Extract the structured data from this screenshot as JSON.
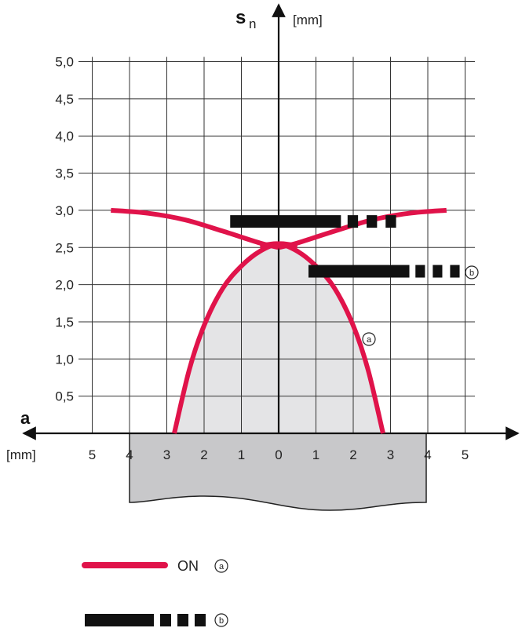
{
  "chart_data": {
    "type": "line",
    "y_axis": {
      "symbol": "s",
      "subscript": "n",
      "unit": "[mm]",
      "range": [
        0,
        5.0
      ],
      "ticks": [
        "0,5",
        "1,0",
        "1,5",
        "2,0",
        "2,5",
        "3,0",
        "3,5",
        "4,0",
        "4,5",
        "5,0"
      ]
    },
    "x_axis": {
      "symbol": "a",
      "unit": "[mm]",
      "range": [
        -5,
        5
      ],
      "tick_labels": [
        "5",
        "4",
        "3",
        "2",
        "1",
        "0",
        "1",
        "2",
        "3",
        "4",
        "5"
      ]
    },
    "grid": true,
    "colors": {
      "on_curve": "#e0134a",
      "off_bar": "#111111",
      "switching_area": "#e4e4e6",
      "actuator": "#c8c8ca"
    },
    "series": [
      {
        "marker": "a",
        "style": "solid",
        "curves": [
          {
            "x": [
              -2.8,
              -2.4,
              -2.0,
              -1.5,
              -1.0,
              -0.5,
              0.0,
              0.5
            ],
            "y": [
              0.0,
              0.85,
              1.45,
              1.95,
              2.25,
              2.45,
              2.55,
              2.52
            ]
          },
          {
            "x": [
              -0.5,
              0.0,
              0.5,
              1.0,
              1.5,
              2.0,
              2.4,
              2.8
            ],
            "y": [
              2.52,
              2.55,
              2.45,
              2.25,
              1.95,
              1.45,
              0.85,
              0.0
            ]
          },
          {
            "x": [
              -4.5,
              -3.5,
              -2.5,
              -1.5,
              -0.5,
              0.0
            ],
            "y": [
              3.0,
              2.96,
              2.87,
              2.72,
              2.56,
              2.5
            ]
          },
          {
            "x": [
              0.0,
              0.5,
              1.5,
              2.5,
              3.5,
              4.5
            ],
            "y": [
              2.5,
              2.56,
              2.72,
              2.87,
              2.96,
              3.0
            ]
          }
        ]
      },
      {
        "marker": "b",
        "style": "dashed",
        "bars": [
          {
            "x_start": -1.3,
            "x_end": 3.2,
            "y": 2.85
          },
          {
            "x_start": 0.8,
            "x_end": 4.9,
            "y": 2.18
          }
        ]
      }
    ],
    "shaded_region": "switching area under the ON curve",
    "legend": [
      {
        "label": "ON",
        "marker": "a",
        "style": "solid"
      },
      {
        "label": "",
        "marker": "b",
        "style": "dashed"
      }
    ]
  }
}
